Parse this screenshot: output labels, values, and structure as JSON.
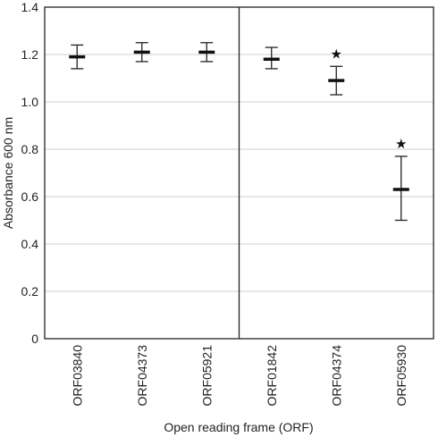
{
  "chart_data": {
    "type": "scatter",
    "title": "",
    "xlabel": "Open reading frame (ORF)",
    "ylabel": "Absorbance 600 nm",
    "ylim": [
      0,
      1.4
    ],
    "yticks": [
      "0",
      "0.2",
      "0.4",
      "0.6",
      "0.8",
      "1.0",
      "1.2",
      "1.4"
    ],
    "grid": true,
    "categories": [
      "ORF03840",
      "ORF04373",
      "ORF05921",
      "ORF01842",
      "ORF04374",
      "ORF05930"
    ],
    "series": [
      {
        "values": [
          1.19,
          1.21,
          1.21,
          1.18,
          1.09,
          0.63
        ],
        "error_low": [
          1.14,
          1.17,
          1.17,
          1.14,
          1.03,
          0.5
        ],
        "error_high": [
          1.24,
          1.25,
          1.25,
          1.23,
          1.15,
          0.77
        ]
      }
    ],
    "significance": [
      {
        "category": "ORF04374",
        "symbol": "★"
      },
      {
        "category": "ORF05930",
        "symbol": "★"
      }
    ],
    "group_divider_after": "ORF05921"
  }
}
